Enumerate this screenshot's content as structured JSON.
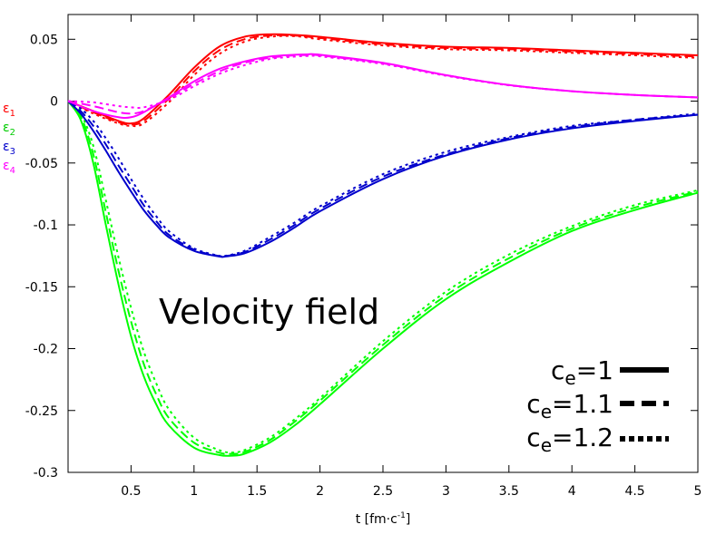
{
  "chart_data": {
    "type": "line",
    "xlabel_main": "t [fm",
    "xlabel_dot": "·",
    "xlabel_c": "c",
    "xlabel_exp": "-1",
    "xlabel_end": "]",
    "annotation": "Velocity field",
    "xlim": [
      0,
      5
    ],
    "ylim": [
      -0.3,
      0.07
    ],
    "xticks": [
      0.5,
      1,
      1.5,
      2,
      2.5,
      3,
      3.5,
      4,
      4.5,
      5
    ],
    "xtick_labels": [
      "0.5",
      "1",
      "1.5",
      "2",
      "2.5",
      "3",
      "3.5",
      "4",
      "4.5",
      "5"
    ],
    "yticks": [
      0.05,
      0,
      -0.05,
      -0.1,
      -0.15,
      -0.2,
      -0.25,
      -0.3
    ],
    "ytick_labels": [
      "0.05",
      "0",
      "-0.05",
      "-0.1",
      "-0.15",
      "-0.2",
      "-0.25",
      "-0.3"
    ],
    "ylabels": [
      {
        "base": "ε",
        "sub": "1",
        "color": "#ff0000"
      },
      {
        "base": "ε",
        "sub": "2",
        "color": "#00cc00"
      },
      {
        "base": "ε",
        "sub": "3",
        "color": "#0000cc"
      },
      {
        "base": "ε",
        "sub": "4",
        "color": "#ff00ff"
      }
    ],
    "legend": [
      {
        "base": "c",
        "sub": "e",
        "value": "=1",
        "dash": "solid"
      },
      {
        "base": "c",
        "sub": "e",
        "value": "=1.1",
        "dash": "dashed"
      },
      {
        "base": "c",
        "sub": "e",
        "value": "=1.2",
        "dash": "dotted"
      }
    ],
    "legend_position": "bottom-right",
    "series": [
      {
        "color": "#ff0000",
        "dash": "solid",
        "x": [
          0,
          0.2,
          0.4,
          0.5,
          0.6,
          0.8,
          1.0,
          1.2,
          1.4,
          1.6,
          1.8,
          2.0,
          2.5,
          3.0,
          3.5,
          4.0,
          4.5,
          5.0
        ],
        "y": [
          0,
          -0.008,
          -0.016,
          -0.018,
          -0.014,
          0.005,
          0.027,
          0.044,
          0.052,
          0.054,
          0.0535,
          0.052,
          0.047,
          0.044,
          0.043,
          0.041,
          0.039,
          0.037
        ]
      },
      {
        "color": "#ff0000",
        "dash": "dashed",
        "x": [
          0,
          0.2,
          0.4,
          0.5,
          0.6,
          0.8,
          1.0,
          1.2,
          1.4,
          1.6,
          1.8,
          2.0,
          2.5,
          3.0,
          3.5,
          4.0,
          4.5,
          5.0
        ],
        "y": [
          0,
          -0.009,
          -0.017,
          -0.019,
          -0.016,
          0.002,
          0.024,
          0.041,
          0.05,
          0.053,
          0.053,
          0.051,
          0.046,
          0.043,
          0.042,
          0.04,
          0.038,
          0.036
        ]
      },
      {
        "color": "#ff0000",
        "dash": "dotted",
        "x": [
          0,
          0.2,
          0.4,
          0.5,
          0.6,
          0.8,
          1.0,
          1.2,
          1.4,
          1.6,
          1.8,
          2.0,
          2.5,
          3.0,
          3.5,
          4.0,
          4.5,
          5.0
        ],
        "y": [
          0,
          -0.01,
          -0.018,
          -0.02,
          -0.018,
          -0.001,
          0.021,
          0.038,
          0.048,
          0.052,
          0.0525,
          0.05,
          0.045,
          0.042,
          0.041,
          0.039,
          0.037,
          0.035
        ]
      },
      {
        "color": "#00ff00",
        "dash": "solid",
        "x": [
          0,
          0.1,
          0.2,
          0.3,
          0.4,
          0.5,
          0.6,
          0.7,
          0.8,
          1.0,
          1.2,
          1.3,
          1.4,
          1.6,
          1.8,
          2.0,
          2.5,
          3.0,
          3.5,
          4.0,
          4.5,
          5.0
        ],
        "y": [
          0,
          -0.015,
          -0.05,
          -0.1,
          -0.148,
          -0.19,
          -0.222,
          -0.245,
          -0.262,
          -0.28,
          -0.286,
          -0.2865,
          -0.285,
          -0.276,
          -0.262,
          -0.245,
          -0.2,
          -0.16,
          -0.13,
          -0.105,
          -0.088,
          -0.074
        ]
      },
      {
        "color": "#00ff00",
        "dash": "dashed",
        "x": [
          0,
          0.1,
          0.2,
          0.3,
          0.4,
          0.5,
          0.6,
          0.7,
          0.8,
          1.0,
          1.2,
          1.3,
          1.4,
          1.6,
          1.8,
          2.0,
          2.5,
          3.0,
          3.5,
          4.0,
          4.5,
          5.0
        ],
        "y": [
          0,
          -0.012,
          -0.043,
          -0.09,
          -0.137,
          -0.178,
          -0.212,
          -0.237,
          -0.256,
          -0.276,
          -0.284,
          -0.285,
          -0.2835,
          -0.274,
          -0.259,
          -0.242,
          -0.197,
          -0.157,
          -0.127,
          -0.103,
          -0.086,
          -0.073
        ]
      },
      {
        "color": "#00ff00",
        "dash": "dotted",
        "x": [
          0,
          0.1,
          0.2,
          0.3,
          0.4,
          0.5,
          0.6,
          0.7,
          0.8,
          1.0,
          1.2,
          1.3,
          1.4,
          1.6,
          1.8,
          2.0,
          2.5,
          3.0,
          3.5,
          4.0,
          4.5,
          5.0
        ],
        "y": [
          0,
          -0.01,
          -0.036,
          -0.08,
          -0.126,
          -0.167,
          -0.202,
          -0.228,
          -0.249,
          -0.272,
          -0.282,
          -0.284,
          -0.282,
          -0.272,
          -0.257,
          -0.24,
          -0.194,
          -0.154,
          -0.124,
          -0.101,
          -0.084,
          -0.072
        ]
      },
      {
        "color": "#0000cc",
        "dash": "solid",
        "x": [
          0,
          0.1,
          0.2,
          0.3,
          0.4,
          0.5,
          0.6,
          0.7,
          0.8,
          1.0,
          1.2,
          1.25,
          1.4,
          1.6,
          1.8,
          2.0,
          2.5,
          3.0,
          3.5,
          4.0,
          4.5,
          5.0
        ],
        "y": [
          0,
          -0.01,
          -0.024,
          -0.04,
          -0.057,
          -0.073,
          -0.088,
          -0.1,
          -0.11,
          -0.121,
          -0.1255,
          -0.1255,
          -0.123,
          -0.114,
          -0.102,
          -0.089,
          -0.063,
          -0.044,
          -0.031,
          -0.022,
          -0.016,
          -0.011
        ]
      },
      {
        "color": "#0000cc",
        "dash": "dashed",
        "x": [
          0,
          0.1,
          0.2,
          0.3,
          0.4,
          0.5,
          0.6,
          0.7,
          0.8,
          1.0,
          1.2,
          1.25,
          1.4,
          1.6,
          1.8,
          2.0,
          2.5,
          3.0,
          3.5,
          4.0,
          4.5,
          5.0
        ],
        "y": [
          0,
          -0.008,
          -0.02,
          -0.035,
          -0.052,
          -0.068,
          -0.084,
          -0.097,
          -0.108,
          -0.12,
          -0.1252,
          -0.1252,
          -0.122,
          -0.112,
          -0.1,
          -0.087,
          -0.061,
          -0.043,
          -0.03,
          -0.021,
          -0.015,
          -0.011
        ]
      },
      {
        "color": "#0000cc",
        "dash": "dotted",
        "x": [
          0,
          0.1,
          0.2,
          0.3,
          0.4,
          0.5,
          0.6,
          0.7,
          0.8,
          1.0,
          1.2,
          1.25,
          1.4,
          1.6,
          1.8,
          2.0,
          2.5,
          3.0,
          3.5,
          4.0,
          4.5,
          5.0
        ],
        "y": [
          0,
          -0.006,
          -0.016,
          -0.03,
          -0.046,
          -0.063,
          -0.079,
          -0.093,
          -0.105,
          -0.119,
          -0.125,
          -0.125,
          -0.121,
          -0.11,
          -0.098,
          -0.085,
          -0.059,
          -0.041,
          -0.029,
          -0.02,
          -0.015,
          -0.01
        ]
      },
      {
        "color": "#ff00ff",
        "dash": "solid",
        "x": [
          0,
          0.2,
          0.4,
          0.5,
          0.6,
          0.8,
          1.0,
          1.2,
          1.4,
          1.6,
          1.8,
          1.9,
          2.0,
          2.5,
          3.0,
          3.5,
          4.0,
          4.5,
          5.0
        ],
        "y": [
          0,
          -0.008,
          -0.013,
          -0.013,
          -0.009,
          0.003,
          0.016,
          0.026,
          0.032,
          0.036,
          0.0375,
          0.0378,
          0.0375,
          0.031,
          0.021,
          0.013,
          0.008,
          0.005,
          0.003
        ]
      },
      {
        "color": "#ff00ff",
        "dash": "dashed",
        "x": [
          0,
          0.2,
          0.4,
          0.5,
          0.6,
          0.8,
          1.0,
          1.2,
          1.4,
          1.6,
          1.8,
          1.9,
          2.0,
          2.5,
          3.0,
          3.5,
          4.0,
          4.5,
          5.0
        ],
        "y": [
          0,
          -0.004,
          -0.009,
          -0.01,
          -0.008,
          0.002,
          0.014,
          0.024,
          0.031,
          0.035,
          0.037,
          0.0372,
          0.037,
          0.0305,
          0.021,
          0.013,
          0.008,
          0.005,
          0.003
        ]
      },
      {
        "color": "#ff00ff",
        "dash": "dotted",
        "x": [
          0,
          0.2,
          0.4,
          0.5,
          0.6,
          0.8,
          1.0,
          1.2,
          1.4,
          1.6,
          1.8,
          1.9,
          2.0,
          2.5,
          3.0,
          3.5,
          4.0,
          4.5,
          5.0
        ],
        "y": [
          0,
          -0.001,
          -0.004,
          -0.005,
          -0.005,
          0.001,
          0.012,
          0.022,
          0.029,
          0.034,
          0.036,
          0.0365,
          0.0362,
          0.03,
          0.0205,
          0.0128,
          0.008,
          0.005,
          0.003
        ]
      }
    ]
  }
}
